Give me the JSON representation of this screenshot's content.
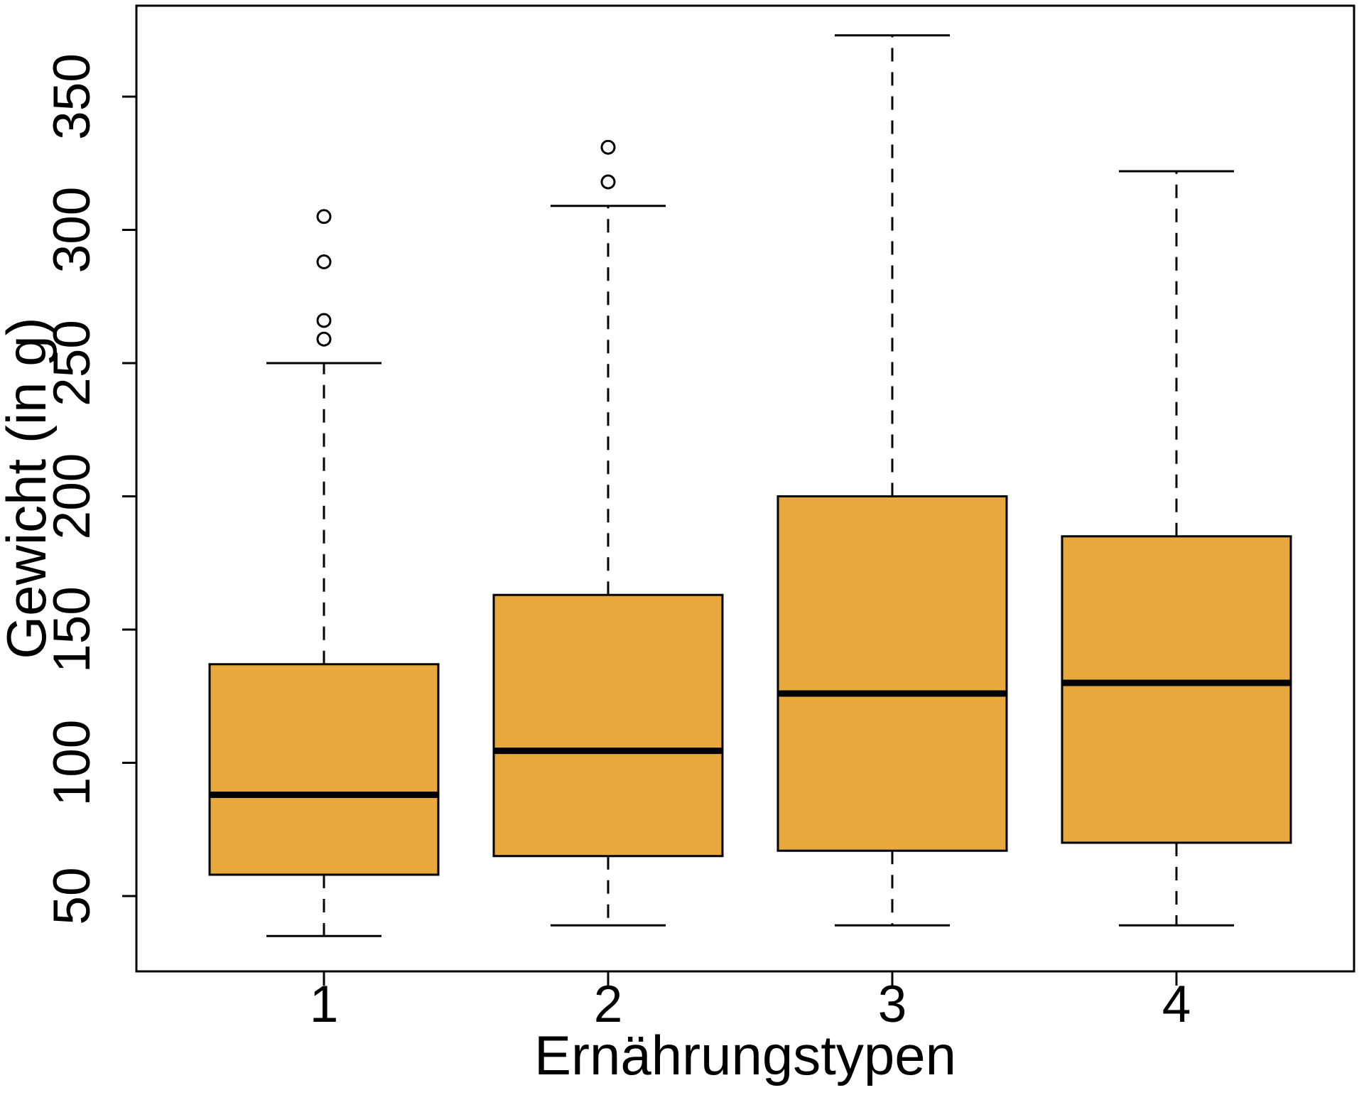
{
  "chart_data": {
    "type": "boxplot",
    "title": "",
    "xlabel": "Ernährungstypen",
    "ylabel": "Gewicht (in g)",
    "categories": [
      "1",
      "2",
      "3",
      "4"
    ],
    "y_ticks": [
      50,
      100,
      150,
      200,
      250,
      300,
      350
    ],
    "ylim": [
      22,
      384
    ],
    "grid": false,
    "legend": "none",
    "boxes": [
      {
        "category": "1",
        "whisker_low": 35,
        "q1": 58,
        "median": 88,
        "q3": 137,
        "whisker_high": 250,
        "outliers": [
          259,
          266,
          288,
          305
        ]
      },
      {
        "category": "2",
        "whisker_low": 39,
        "q1": 65,
        "median": 104.5,
        "q3": 163,
        "whisker_high": 309,
        "outliers": [
          318,
          331
        ]
      },
      {
        "category": "3",
        "whisker_low": 39,
        "q1": 67,
        "median": 126,
        "q3": 200,
        "whisker_high": 373,
        "outliers": []
      },
      {
        "category": "4",
        "whisker_low": 39,
        "q1": 70,
        "median": 130,
        "q3": 185,
        "whisker_high": 322,
        "outliers": []
      }
    ],
    "style": {
      "box_fill": "#E8A93C",
      "line_color": "#000000",
      "background": "#FFFFFF"
    }
  }
}
